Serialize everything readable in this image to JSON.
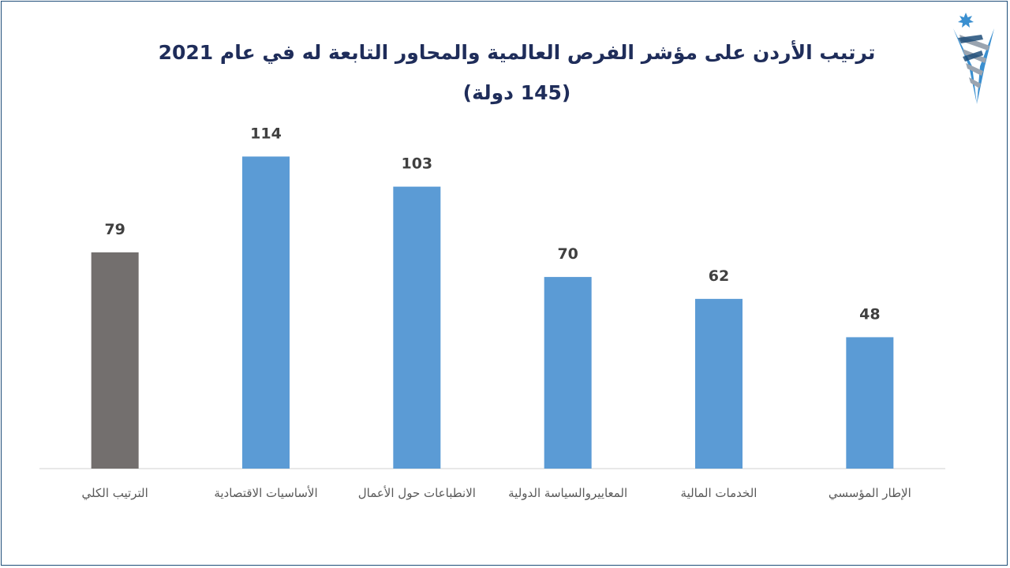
{
  "header": {
    "title": "ترتيب الأردن على مؤشر الفرص العالمية والمحاور التابعة له في عام 2021",
    "subtitle": "(145 دولة)"
  },
  "colors": {
    "highlight_bar": "#736f6e",
    "bar": "#5b9bd5",
    "axis": "#d0d0d0",
    "title": "#1f2d5a",
    "frame": "#1f4e79"
  },
  "logo": {
    "icon": "jordan-star-emblem-icon"
  },
  "chart_data": {
    "type": "bar",
    "categories": [
      "الترتيب الكلي",
      "الأساسيات الاقتصادية",
      "الانطباعات حول الأعمال",
      "المعاييروالسياسة الدولية",
      "الخدمات المالية",
      "الإطار المؤسسي"
    ],
    "values": [
      79,
      114,
      103,
      70,
      62,
      48
    ],
    "highlight_index": 0,
    "title": "ترتيب الأردن على مؤشر الفرص العالمية والمحاور التابعة له في عام 2021",
    "xlabel": "",
    "ylabel": "",
    "ylim": [
      0,
      120
    ],
    "grid": false,
    "legend": "none",
    "data_labels": true
  }
}
